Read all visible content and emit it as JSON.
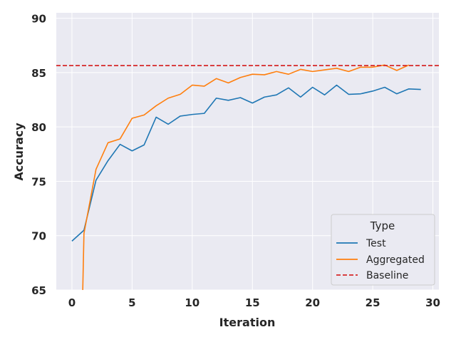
{
  "chart_data": {
    "type": "line",
    "title": "",
    "xlabel": "Iteration",
    "ylabel": "Accuracy",
    "xlim": [
      -1.3,
      30.5
    ],
    "ylim": [
      65,
      90.5
    ],
    "xticks": [
      0,
      5,
      10,
      15,
      20,
      25,
      30
    ],
    "yticks": [
      65,
      70,
      75,
      80,
      85,
      90
    ],
    "grid": true,
    "legend": {
      "title": "Type",
      "position": "bottom-right"
    },
    "series": [
      {
        "name": "Test",
        "color": "#1f77b4",
        "x": [
          0,
          1,
          2,
          3,
          4,
          5,
          6,
          7,
          8,
          9,
          10,
          11,
          12,
          13,
          14,
          15,
          16,
          17,
          18,
          19,
          20,
          21,
          22,
          23,
          24,
          25,
          26,
          27,
          28,
          29
        ],
        "values": [
          69.5,
          70.5,
          75.1,
          76.9,
          78.4,
          77.8,
          78.35,
          80.9,
          80.25,
          81.0,
          81.15,
          81.25,
          82.65,
          82.45,
          82.7,
          82.2,
          82.75,
          82.95,
          83.6,
          82.75,
          83.65,
          82.95,
          83.85,
          83.0,
          83.05,
          83.3,
          83.65,
          83.05,
          83.5,
          83.45
        ]
      },
      {
        "name": "Aggregated",
        "color": "#ff7f0e",
        "x": [
          0.9,
          1,
          2,
          3,
          4,
          5,
          6,
          7,
          8,
          9,
          10,
          11,
          12,
          13,
          14,
          15,
          16,
          17,
          18,
          19,
          20,
          21,
          22,
          23,
          24,
          25,
          26,
          27,
          28
        ],
        "values": [
          65.0,
          70.2,
          76.1,
          78.55,
          78.9,
          80.8,
          81.1,
          81.95,
          82.65,
          83.0,
          83.85,
          83.75,
          84.45,
          84.05,
          84.55,
          84.85,
          84.8,
          85.1,
          84.85,
          85.3,
          85.1,
          85.25,
          85.4,
          85.1,
          85.5,
          85.5,
          85.7,
          85.2,
          85.7
        ]
      },
      {
        "name": "Baseline",
        "color": "#d62728",
        "style": "dashed",
        "value": 85.65
      }
    ]
  }
}
